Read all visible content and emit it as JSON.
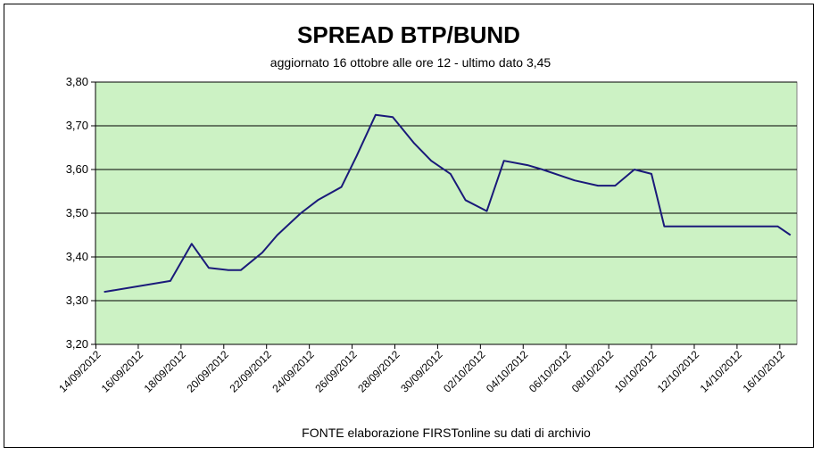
{
  "chart_data": {
    "type": "line",
    "title": "SPREAD  BTP/BUND",
    "subtitle": "aggiornato 16 ottobre alle ore 12 - ultimo dato 3,45",
    "footer": "FONTE elaborazione FIRSTonline su dati di archivio",
    "ylim": [
      3.2,
      3.8
    ],
    "yticks": [
      "3,20",
      "3,30",
      "3,40",
      "3,50",
      "3,60",
      "3,70",
      "3,80"
    ],
    "ytick_values": [
      3.2,
      3.3,
      3.4,
      3.5,
      3.6,
      3.7,
      3.8
    ],
    "xlim": [
      0,
      32.8
    ],
    "xticks": [
      "14/09/2012",
      "16/09/2012",
      "18/09/2012",
      "20/09/2012",
      "22/09/2012",
      "24/09/2012",
      "26/09/2012",
      "28/09/2012",
      "30/09/2012",
      "02/10/2012",
      "04/10/2012",
      "06/10/2012",
      "08/10/2012",
      "10/10/2012",
      "12/10/2012",
      "14/10/2012",
      "16/10/2012"
    ],
    "grid": true,
    "colors": {
      "plot_background": "#ccf2c4",
      "line": "#1a1a7a",
      "grid": "#000000"
    },
    "series": [
      {
        "x": [
          0.4,
          3.5,
          4.5,
          5.3,
          6.2,
          6.8,
          7.8,
          8.5,
          9.6,
          10.4,
          11.5,
          12.2,
          13.1,
          13.9,
          14.9,
          15.7,
          16.6,
          17.3,
          18.3,
          19.1,
          20.2,
          20.9,
          21.8,
          22.4,
          23.5,
          24.3,
          25.2,
          26.0,
          26.6,
          27.5,
          28.3,
          29.3,
          31.9,
          32.5
        ],
        "y": [
          3.32,
          3.345,
          3.43,
          3.375,
          3.37,
          3.37,
          3.41,
          3.45,
          3.5,
          3.53,
          3.56,
          3.63,
          3.725,
          3.72,
          3.66,
          3.62,
          3.59,
          3.53,
          3.505,
          3.62,
          3.61,
          3.6,
          3.585,
          3.575,
          3.563,
          3.563,
          3.6,
          3.59,
          3.47,
          3.47,
          3.47,
          3.47,
          3.47,
          3.45
        ]
      }
    ]
  }
}
